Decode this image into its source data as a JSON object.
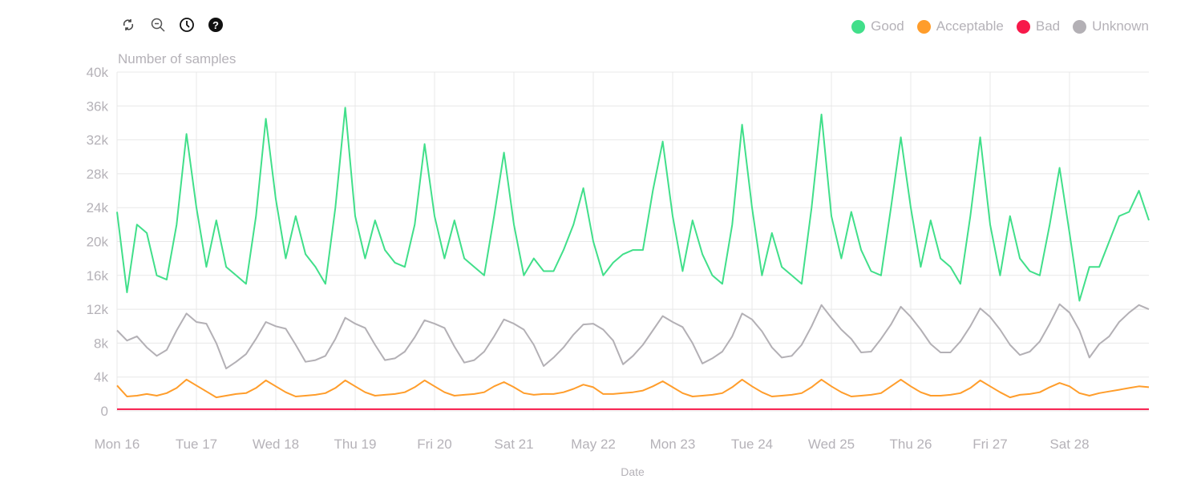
{
  "toolbar": {
    "icons": [
      "refresh-icon",
      "zoom-out-icon",
      "clock-icon",
      "help-icon"
    ]
  },
  "legend": [
    {
      "label": "Good",
      "color": "#41df8a"
    },
    {
      "label": "Acceptable",
      "color": "#ff9d2b"
    },
    {
      "label": "Bad",
      "color": "#f7194a"
    },
    {
      "label": "Unknown",
      "color": "#b3b0b5"
    }
  ],
  "chart_data": {
    "type": "line",
    "title": "",
    "xlabel": "Date",
    "ylabel": "Number of samples",
    "ylim": [
      0,
      40000
    ],
    "yticks": [
      0,
      4000,
      8000,
      12000,
      16000,
      20000,
      24000,
      28000,
      32000,
      36000,
      40000
    ],
    "ytick_labels": [
      "0",
      "4k",
      "8k",
      "12k",
      "16k",
      "20k",
      "24k",
      "28k",
      "32k",
      "36k",
      "40k"
    ],
    "xtick_labels": [
      "Mon 16",
      "Tue 17",
      "Wed 18",
      "Thu 19",
      "Fri 20",
      "Sat 21",
      "May 22",
      "Mon 23",
      "Tue 24",
      "Wed 25",
      "Thu 26",
      "Fri 27",
      "Sat 28"
    ],
    "xlim": [
      "May 16 00:00",
      "May 29 00:00"
    ],
    "grid": true,
    "legend_position": "top-right",
    "x": [
      "May 16 00:00",
      "May 16 03:00",
      "May 16 06:00",
      "May 16 09:00",
      "May 16 12:00",
      "May 16 15:00",
      "May 16 18:00",
      "May 16 21:00",
      "May 17 00:00",
      "May 17 03:00",
      "May 17 06:00",
      "May 17 09:00",
      "May 17 12:00",
      "May 17 15:00",
      "May 17 18:00",
      "May 17 21:00",
      "May 18 00:00",
      "May 18 03:00",
      "May 18 06:00",
      "May 18 09:00",
      "May 18 12:00",
      "May 18 15:00",
      "May 18 18:00",
      "May 18 21:00",
      "May 19 00:00",
      "May 19 03:00",
      "May 19 06:00",
      "May 19 09:00",
      "May 19 12:00",
      "May 19 15:00",
      "May 19 18:00",
      "May 19 21:00",
      "May 20 00:00",
      "May 20 03:00",
      "May 20 06:00",
      "May 20 09:00",
      "May 20 12:00",
      "May 20 15:00",
      "May 20 18:00",
      "May 20 21:00",
      "May 21 00:00",
      "May 21 03:00",
      "May 21 06:00",
      "May 21 09:00",
      "May 21 12:00",
      "May 21 15:00",
      "May 21 18:00",
      "May 21 21:00",
      "May 22 00:00",
      "May 22 03:00",
      "May 22 06:00",
      "May 22 09:00",
      "May 22 12:00",
      "May 22 15:00",
      "May 22 18:00",
      "May 22 21:00",
      "May 23 00:00",
      "May 23 03:00",
      "May 23 06:00",
      "May 23 09:00",
      "May 23 12:00",
      "May 23 15:00",
      "May 23 18:00",
      "May 23 21:00",
      "May 24 00:00",
      "May 24 03:00",
      "May 24 06:00",
      "May 24 09:00",
      "May 24 12:00",
      "May 24 15:00",
      "May 24 18:00",
      "May 24 21:00",
      "May 25 00:00",
      "May 25 03:00",
      "May 25 06:00",
      "May 25 09:00",
      "May 25 12:00",
      "May 25 15:00",
      "May 25 18:00",
      "May 25 21:00",
      "May 26 00:00",
      "May 26 03:00",
      "May 26 06:00",
      "May 26 09:00",
      "May 26 12:00",
      "May 26 15:00",
      "May 26 18:00",
      "May 26 21:00",
      "May 27 00:00",
      "May 27 03:00",
      "May 27 06:00",
      "May 27 09:00",
      "May 27 12:00",
      "May 27 15:00",
      "May 27 18:00",
      "May 27 21:00",
      "May 28 00:00",
      "May 28 03:00",
      "May 28 06:00",
      "May 28 09:00",
      "May 28 12:00",
      "May 28 15:00",
      "May 28 18:00",
      "May 28 21:00",
      "May 29 00:00"
    ],
    "series": [
      {
        "name": "Good",
        "color": "#41df8a",
        "values": [
          23500,
          14000,
          22000,
          21000,
          16000,
          15500,
          22000,
          32700,
          24000,
          17000,
          22500,
          17000,
          16000,
          15000,
          23000,
          34500,
          25000,
          18000,
          23000,
          18500,
          17000,
          15000,
          24000,
          35800,
          23000,
          18000,
          22500,
          19000,
          17500,
          17000,
          22000,
          31500,
          23000,
          18000,
          22500,
          18000,
          17000,
          16000,
          23000,
          30500,
          22000,
          16000,
          18000,
          16500,
          16500,
          19000,
          22000,
          26300,
          20000,
          16000,
          17500,
          18500,
          19000,
          19000,
          26000,
          31800,
          23000,
          16500,
          22500,
          18500,
          16000,
          15000,
          22000,
          33800,
          24000,
          16000,
          21000,
          17000,
          16000,
          15000,
          24000,
          35000,
          23000,
          18000,
          23500,
          19000,
          16500,
          16000,
          24000,
          32300,
          24000,
          17000,
          22500,
          18000,
          17000,
          15000,
          23000,
          32300,
          22000,
          16000,
          23000,
          18000,
          16500,
          16000,
          22000,
          28700,
          21000,
          13000,
          17000,
          17000,
          20000,
          23000,
          23500,
          26000,
          22500
        ]
      },
      {
        "name": "Acceptable",
        "color": "#ff9d2b",
        "values": [
          3000,
          1700,
          1800,
          2000,
          1800,
          2100,
          2700,
          3700,
          3000,
          2300,
          1600,
          1800,
          2000,
          2100,
          2700,
          3600,
          2900,
          2200,
          1700,
          1800,
          1900,
          2100,
          2700,
          3600,
          2900,
          2200,
          1800,
          1900,
          2000,
          2200,
          2800,
          3600,
          2900,
          2200,
          1800,
          1900,
          2000,
          2200,
          2900,
          3400,
          2800,
          2100,
          1900,
          2000,
          2000,
          2200,
          2600,
          3100,
          2800,
          2000,
          2000,
          2100,
          2200,
          2400,
          2900,
          3500,
          2800,
          2100,
          1700,
          1800,
          1900,
          2100,
          2800,
          3700,
          2900,
          2200,
          1700,
          1800,
          1900,
          2100,
          2800,
          3700,
          2900,
          2200,
          1700,
          1800,
          1900,
          2100,
          2900,
          3700,
          2900,
          2200,
          1800,
          1800,
          1900,
          2100,
          2700,
          3600,
          2900,
          2200,
          1600,
          1900,
          2000,
          2200,
          2800,
          3300,
          2900,
          2100,
          1800,
          2100,
          2300,
          2500,
          2700,
          2900,
          2800
        ]
      },
      {
        "name": "Bad",
        "color": "#f7194a",
        "values": [
          200,
          200,
          200,
          200,
          200,
          200,
          200,
          200,
          200,
          200,
          200,
          200,
          200,
          200,
          200,
          200,
          200,
          200,
          200,
          200,
          200,
          200,
          200,
          200,
          200,
          200,
          200,
          200,
          200,
          200,
          200,
          200,
          200,
          200,
          200,
          200,
          200,
          200,
          200,
          200,
          200,
          200,
          200,
          200,
          200,
          200,
          200,
          200,
          200,
          200,
          200,
          200,
          200,
          200,
          200,
          200,
          200,
          200,
          200,
          200,
          200,
          200,
          200,
          200,
          200,
          200,
          200,
          200,
          200,
          200,
          200,
          200,
          200,
          200,
          200,
          200,
          200,
          200,
          200,
          200,
          200,
          200,
          200,
          200,
          200,
          200,
          200,
          200,
          200,
          200,
          200,
          200,
          200,
          200,
          200,
          200,
          200,
          200,
          200,
          200,
          200,
          200,
          200,
          200,
          200
        ]
      },
      {
        "name": "Unknown",
        "color": "#b3b0b5",
        "values": [
          9500,
          8300,
          8800,
          7500,
          6500,
          7200,
          9500,
          11500,
          10500,
          10300,
          8000,
          5000,
          5800,
          6700,
          8500,
          10500,
          10000,
          9700,
          7800,
          5800,
          6000,
          6500,
          8500,
          11000,
          10300,
          9800,
          7800,
          6000,
          6200,
          7000,
          8700,
          10700,
          10300,
          9800,
          7600,
          5700,
          6000,
          7000,
          8800,
          10800,
          10300,
          9600,
          7800,
          5300,
          6300,
          7500,
          9000,
          10200,
          10300,
          9600,
          8300,
          5500,
          6500,
          7800,
          9500,
          11200,
          10500,
          9900,
          8000,
          5600,
          6200,
          7000,
          8800,
          11500,
          10800,
          9400,
          7500,
          6300,
          6500,
          7800,
          10000,
          12500,
          11000,
          9600,
          8500,
          6900,
          7000,
          8500,
          10200,
          12300,
          11100,
          9600,
          7900,
          6900,
          6900,
          8200,
          10000,
          12100,
          11100,
          9600,
          7800,
          6600,
          7000,
          8200,
          10300,
          12600,
          11600,
          9500,
          6300,
          7900,
          8800,
          10500,
          11600,
          12500,
          12000
        ]
      }
    ]
  }
}
